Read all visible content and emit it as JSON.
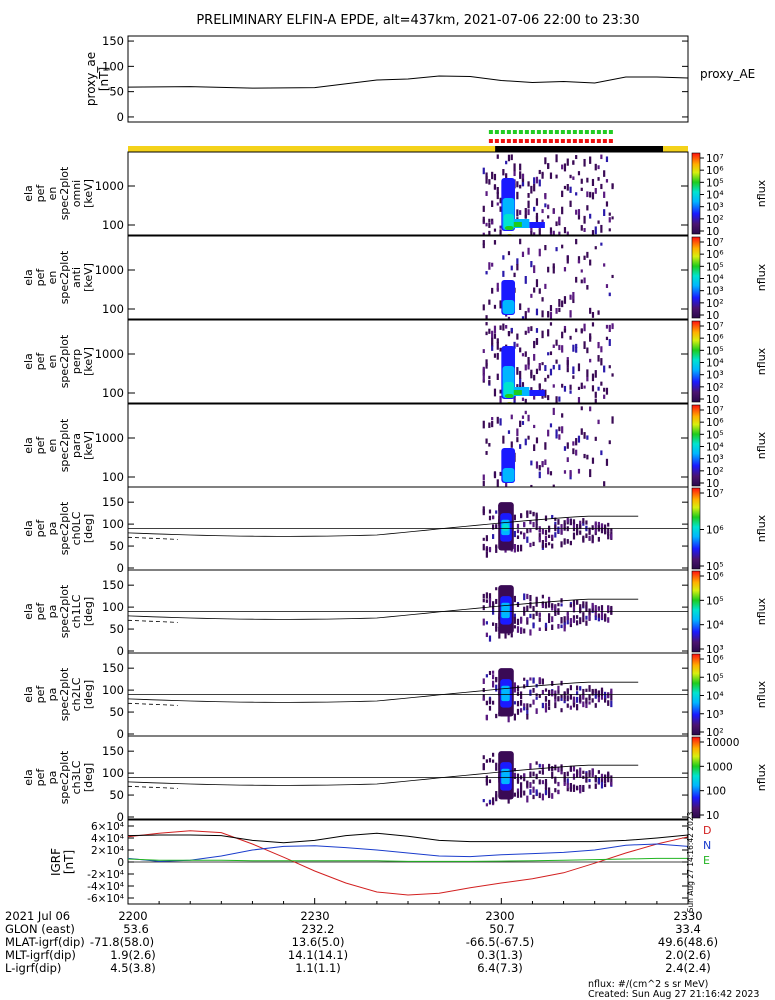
{
  "title": "PRELIMINARY ELFIN-A EPDE, alt=437km, 2021-07-06 22:00 to 23:30",
  "colors": {
    "sunlit_bar": "#f4d21a",
    "shadow_bar": "#000000",
    "fgm_marker": "#22cc22",
    "epd_marker": "#ee1111",
    "igrf_d": "#d22020",
    "igrf_n": "#1a3ccc",
    "igrf_e": "#22b422"
  },
  "chart_data": [
    {
      "type": "line",
      "name": "proxy_ae",
      "ylabel_lines": [
        "proxy_ae",
        "[nT]"
      ],
      "legend": "proxy_AE",
      "ylim": [
        -10,
        160
      ],
      "yticks": [
        "0",
        "50",
        "100",
        "150"
      ],
      "x_minutes": [
        0,
        10,
        20,
        30,
        40,
        45,
        50,
        55,
        60,
        65,
        70,
        75,
        80,
        85,
        90
      ],
      "values": [
        59,
        60,
        57,
        58,
        73,
        75,
        81,
        80,
        72,
        68,
        70,
        67,
        79,
        79,
        77
      ]
    },
    {
      "type": "heatmap",
      "name": "ela_pef_en_spec2plot_omni",
      "ylabel_lines": [
        "ela",
        "pef",
        "en",
        "spec2plot",
        "omni",
        "[keV]"
      ],
      "scale": "log",
      "yticks": [
        "100",
        "1000"
      ],
      "colorbar": {
        "label": "nflux",
        "ticks": [
          "10",
          "10²",
          "10³",
          "10⁴",
          "10⁵",
          "10⁶",
          "10⁷"
        ]
      },
      "science_zone_minutes": [
        58,
        78
      ]
    },
    {
      "type": "heatmap",
      "name": "ela_pef_en_spec2plot_anti",
      "ylabel_lines": [
        "ela",
        "pef",
        "en",
        "spec2plot",
        "anti",
        "[keV]"
      ],
      "scale": "log",
      "yticks": [
        "100",
        "1000"
      ],
      "colorbar": {
        "label": "nflux",
        "ticks": [
          "10",
          "10²",
          "10³",
          "10⁴",
          "10⁵",
          "10⁶",
          "10⁷"
        ]
      }
    },
    {
      "type": "heatmap",
      "name": "ela_pef_en_spec2plot_perp",
      "ylabel_lines": [
        "ela",
        "pef",
        "en",
        "spec2plot",
        "perp",
        "[keV]"
      ],
      "scale": "log",
      "yticks": [
        "100",
        "1000"
      ],
      "colorbar": {
        "label": "nflux",
        "ticks": [
          "10",
          "10²",
          "10³",
          "10⁴",
          "10⁵",
          "10⁶",
          "10⁷"
        ]
      }
    },
    {
      "type": "heatmap",
      "name": "ela_pef_en_spec2plot_para",
      "ylabel_lines": [
        "ela",
        "pef",
        "en",
        "spec2plot",
        "para",
        "[keV]"
      ],
      "scale": "log",
      "yticks": [
        "100",
        "1000"
      ],
      "colorbar": {
        "label": "nflux",
        "ticks": [
          "10",
          "10²",
          "10³",
          "10⁴",
          "10⁵",
          "10⁶",
          "10⁷"
        ]
      }
    },
    {
      "type": "heatmap",
      "name": "ela_pef_pa_spec2plot_ch0LC",
      "ylabel_lines": [
        "ela",
        "pef",
        "pa",
        "spec2plot",
        "ch0LC",
        "[deg]"
      ],
      "ylim": [
        0,
        180
      ],
      "yticks": [
        "0",
        "50",
        "100",
        "150"
      ],
      "colorbar": {
        "label": "nflux",
        "ticks": [
          "10⁵",
          "10⁶",
          "10⁷"
        ]
      }
    },
    {
      "type": "heatmap",
      "name": "ela_pef_pa_spec2plot_ch1LC",
      "ylabel_lines": [
        "ela",
        "pef",
        "pa",
        "spec2plot",
        "ch1LC",
        "[deg]"
      ],
      "ylim": [
        0,
        180
      ],
      "yticks": [
        "0",
        "50",
        "100",
        "150"
      ],
      "colorbar": {
        "label": "nflux",
        "ticks": [
          "10³",
          "10⁴",
          "10⁵",
          "10⁶"
        ]
      }
    },
    {
      "type": "heatmap",
      "name": "ela_pef_pa_spec2plot_ch2LC",
      "ylabel_lines": [
        "ela",
        "pef",
        "pa",
        "spec2plot",
        "ch2LC",
        "[deg]"
      ],
      "ylim": [
        0,
        180
      ],
      "yticks": [
        "0",
        "50",
        "100",
        "150"
      ],
      "colorbar": {
        "label": "nflux",
        "ticks": [
          "10²",
          "10³",
          "10⁴",
          "10⁵",
          "10⁶"
        ]
      }
    },
    {
      "type": "heatmap",
      "name": "ela_pef_pa_spec2plot_ch3LC",
      "ylabel_lines": [
        "ela",
        "pef",
        "pa",
        "spec2plot",
        "ch3LC",
        "[deg]"
      ],
      "ylim": [
        0,
        180
      ],
      "yticks": [
        "0",
        "50",
        "100",
        "150"
      ],
      "colorbar": {
        "label": "nflux",
        "ticks": [
          "10",
          "100",
          "1000",
          "10000"
        ]
      }
    },
    {
      "type": "line",
      "name": "IGRF",
      "ylabel_lines": [
        "IGRF",
        "[nT]"
      ],
      "ylim": [
        -70000,
        70000
      ],
      "yticks": [
        "-6×10⁴",
        "-4×10⁴",
        "-2×10⁴",
        "0",
        "2×10⁴",
        "4×10⁴",
        "6×10⁴"
      ],
      "legend": [
        "D",
        "N",
        "E"
      ],
      "x_minutes": [
        0,
        5,
        10,
        15,
        20,
        25,
        30,
        35,
        40,
        45,
        50,
        55,
        60,
        65,
        70,
        75,
        80,
        85,
        90
      ],
      "series": [
        {
          "name": "D",
          "values": [
            42000,
            48000,
            52000,
            49000,
            30000,
            8000,
            -15000,
            -35000,
            -50000,
            -55000,
            -52000,
            -43000,
            -35000,
            -28000,
            -18000,
            -2000,
            15000,
            30000,
            42000
          ]
        },
        {
          "name": "N",
          "values": [
            6000,
            1000,
            3000,
            10000,
            20000,
            26000,
            27000,
            24000,
            20000,
            15000,
            10000,
            9000,
            12000,
            14000,
            16000,
            20000,
            28000,
            30000,
            26000
          ]
        },
        {
          "name": "E",
          "values": [
            5000,
            3000,
            3000,
            3000,
            2000,
            2000,
            2000,
            2000,
            2000,
            1000,
            1000,
            1000,
            1500,
            2000,
            3000,
            4000,
            5000,
            6000,
            6000
          ]
        },
        {
          "name": "total",
          "values": [
            44000,
            45000,
            45000,
            44000,
            36000,
            32000,
            36000,
            44000,
            48000,
            43000,
            36000,
            34000,
            34000,
            34000,
            34000,
            34000,
            36000,
            40000,
            45000
          ]
        }
      ],
      "side_stamp": "Sun Aug 27 14:16:42 2023"
    }
  ],
  "x_axis": {
    "tick_labels": [
      "2200",
      "2230",
      "2300",
      "2330"
    ],
    "rows": [
      {
        "label": "2021 Jul 06",
        "values": [
          "2200",
          "2230",
          "2300",
          "2330"
        ]
      },
      {
        "label": "GLON (east)",
        "values": [
          "53.6",
          "232.2",
          "50.7",
          "33.4"
        ]
      },
      {
        "label": "MLAT-igrf(dip)",
        "values": [
          "-71.8(58.0)",
          "13.6(5.0)",
          "-66.5(-67.5)",
          "49.6(48.6)"
        ]
      },
      {
        "label": "MLT-igrf(dip)",
        "values": [
          "1.9(2.6)",
          "14.1(14.1)",
          "0.3(1.3)",
          "2.0(2.6)"
        ]
      },
      {
        "label": "L-igrf(dip)",
        "values": [
          "4.5(3.8)",
          "1.1(1.1)",
          "6.4(7.3)",
          "2.4(2.4)"
        ]
      }
    ]
  },
  "footer": {
    "units": "nflux: #/(cm^2 s sr MeV)",
    "created": "Created: Sun Aug 27 21:16:42 2023"
  }
}
